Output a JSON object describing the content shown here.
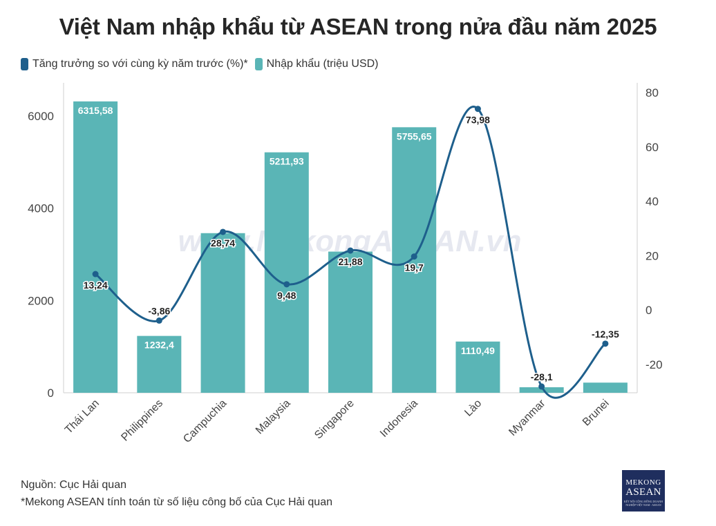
{
  "chart_data": {
    "type": "bar",
    "title": "Việt Nam nhập khẩu từ ASEAN trong nửa đầu năm 2025",
    "categories": [
      "Thái Lan",
      "Philippines",
      "Campuchia",
      "Malaysia",
      "Singapore",
      "Indonesia",
      "Lào",
      "Myanmar",
      "Brunei"
    ],
    "series": [
      {
        "name": "Nhập khẩu (triệu USD)",
        "type": "bar",
        "axis": "left",
        "color": "#5ab5b6",
        "values": [
          6315.58,
          1232.4,
          3460,
          5211.93,
          3060,
          5755.65,
          1110.49,
          120,
          220
        ],
        "labels": [
          "6315,58",
          "1232,4",
          "",
          "5211,93",
          "",
          "5755,65",
          "1110,49",
          "",
          ""
        ]
      },
      {
        "name": "Tăng trưởng so với cùng kỳ năm trước (%)*",
        "type": "line",
        "axis": "right",
        "color": "#1e5f8c",
        "values": [
          13.24,
          -3.86,
          28.74,
          9.48,
          21.88,
          19.7,
          73.98,
          -28.1,
          -12.35
        ],
        "labels": [
          "13,24",
          "-3,86",
          "28,74",
          "9,48",
          "21,88",
          "19,7",
          "73,98",
          "-28,1",
          "-12,35"
        ]
      }
    ],
    "y_left": {
      "ylim": [
        0,
        6500
      ],
      "ticks": [
        0,
        2000,
        4000,
        6000
      ]
    },
    "y_right": {
      "ylim": [
        -30,
        80
      ],
      "ticks": [
        -20,
        0,
        20,
        40,
        60,
        80
      ]
    },
    "legend_position": "top-left",
    "grid": false
  },
  "legend": {
    "growth_label": "Tăng trưởng so với cùng kỳ năm trước (%)*",
    "import_label": "Nhập khẩu (triệu USD)"
  },
  "watermark": "www.MekongASEAN.vn",
  "footer": {
    "source": "Nguồn: Cục Hải quan",
    "note": "*Mekong ASEAN tính toán từ số liệu công bố của Cục Hải quan"
  },
  "logo": {
    "line1": "MEKONG",
    "line2": "ASEAN",
    "line3": "KẾT NỐI CỘNG ĐỒNG DOANH NGHIỆP VIỆT NAM - ASEAN"
  }
}
